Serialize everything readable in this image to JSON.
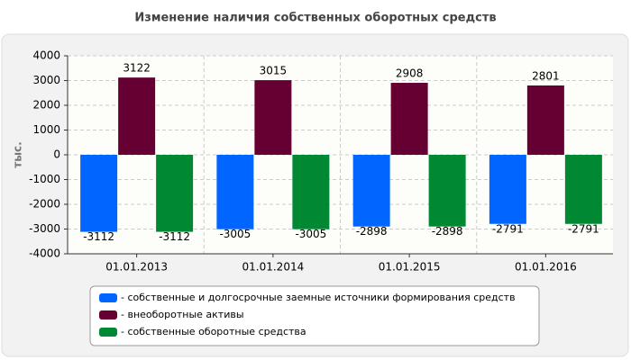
{
  "chart_data": {
    "type": "bar",
    "title": "Изменение наличия собственных оборотных средств",
    "y_label": "тыс.",
    "categories": [
      "01.01.2013",
      "01.01.2014",
      "01.01.2015",
      "01.01.2016"
    ],
    "series": [
      {
        "name": "- собственные и долгосрочные заемные источники формирования средств",
        "color": "#0066ff",
        "values": [
          -3112,
          -3005,
          -2898,
          -2791
        ]
      },
      {
        "name": "- внеоборотные активы",
        "color": "#660033",
        "values": [
          3122,
          3015,
          2908,
          2801
        ]
      },
      {
        "name": "- собственные оборотные средства",
        "color": "#008833",
        "values": [
          -3112,
          -3005,
          -2898,
          -2791
        ]
      }
    ],
    "ylim": [
      -4000,
      4000
    ],
    "yticks": [
      -4000,
      -3000,
      -2000,
      -1000,
      0,
      1000,
      2000,
      3000,
      4000
    ],
    "grid": true
  }
}
